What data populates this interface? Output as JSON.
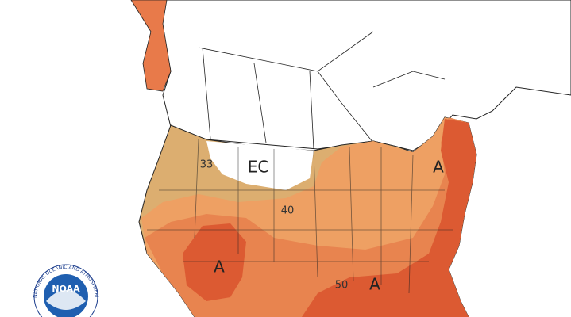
{
  "labels": {
    "ec": "EC",
    "contour_33": "33",
    "contour_40": "40",
    "contour_50": "50",
    "above": [
      "A",
      "A",
      "A"
    ]
  },
  "logo": {
    "name": "NOAA",
    "agency": "NATIONAL OCEANIC AND ATMOSPHERIC ADMINISTRATION"
  }
}
